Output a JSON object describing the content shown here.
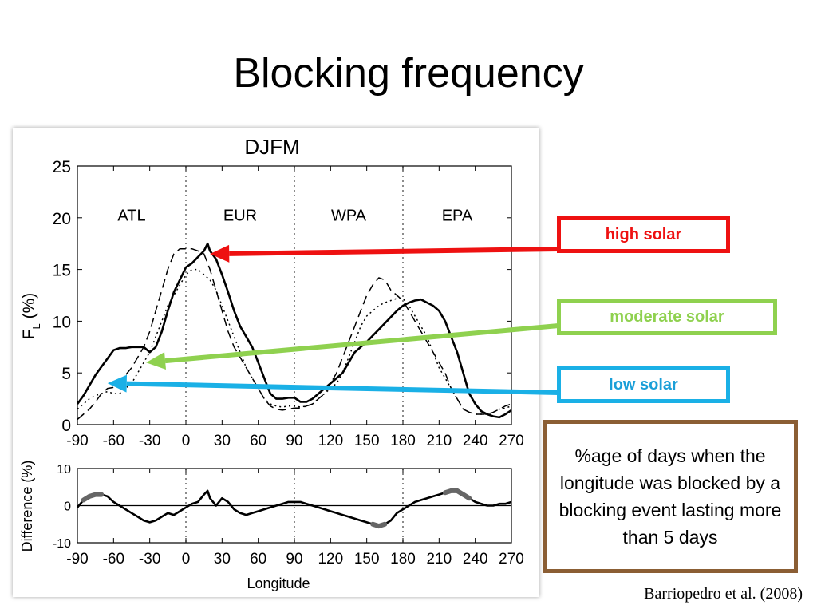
{
  "slide": {
    "title": "Blocking frequency",
    "citation": "Barriopedro et al. (2008)",
    "note": "%age of days when the longitude was blocked by a blocking event lasting more than 5 days"
  },
  "labels": [
    {
      "key": "high",
      "text": "high solar",
      "color": "#ee1111",
      "target": {
        "x": 20,
        "y": 16.5
      }
    },
    {
      "key": "moderate",
      "text": "moderate solar",
      "color": "#8fd14f",
      "target": {
        "x": -33,
        "y": 6.0
      }
    },
    {
      "key": "low",
      "text": "low solar",
      "color": "#1ab0e6",
      "target": {
        "x": -65,
        "y": 4.0
      }
    }
  ],
  "chart_data": [
    {
      "type": "line",
      "title": "DJFM",
      "xlabel": "",
      "ylabel": "F_L (%)",
      "ylabel_main": "F",
      "ylabel_sub": "L",
      "ylabel_unit": "(%)",
      "xlim": [
        -90,
        270
      ],
      "ylim": [
        0,
        25
      ],
      "xticks": [
        -90,
        -60,
        -30,
        0,
        30,
        60,
        90,
        120,
        150,
        180,
        210,
        240,
        270
      ],
      "yticks": [
        0,
        5,
        10,
        15,
        20,
        25
      ],
      "sector_dividers": [
        0,
        90,
        180
      ],
      "regions": [
        {
          "label": "ATL",
          "x": -45
        },
        {
          "label": "EUR",
          "x": 45
        },
        {
          "label": "WPA",
          "x": 135
        },
        {
          "label": "EPA",
          "x": 225
        }
      ],
      "series": [
        {
          "style": "solid",
          "x": [
            -90,
            -85,
            -80,
            -75,
            -70,
            -65,
            -60,
            -55,
            -50,
            -45,
            -40,
            -35,
            -30,
            -25,
            -20,
            -15,
            -10,
            -5,
            0,
            5,
            10,
            15,
            18,
            20,
            25,
            30,
            35,
            40,
            45,
            50,
            55,
            60,
            65,
            70,
            75,
            80,
            85,
            90,
            95,
            100,
            105,
            110,
            115,
            120,
            125,
            130,
            135,
            140,
            145,
            150,
            155,
            160,
            165,
            170,
            175,
            180,
            185,
            190,
            195,
            200,
            205,
            210,
            215,
            220,
            225,
            230,
            235,
            240,
            245,
            250,
            255,
            260,
            265,
            270
          ],
          "y": [
            2.0,
            2.8,
            3.8,
            4.8,
            5.6,
            6.4,
            7.2,
            7.4,
            7.4,
            7.5,
            7.5,
            7.5,
            7.0,
            7.5,
            9.0,
            11.0,
            12.8,
            14.0,
            15.2,
            15.6,
            16.2,
            16.8,
            17.5,
            16.8,
            16.0,
            14.5,
            12.8,
            11.0,
            9.5,
            8.5,
            7.5,
            6.0,
            4.5,
            3.0,
            2.5,
            2.5,
            2.6,
            2.6,
            2.2,
            2.2,
            2.5,
            3.0,
            3.5,
            4.0,
            4.5,
            5.0,
            6.0,
            7.0,
            7.5,
            8.0,
            8.6,
            9.2,
            9.8,
            10.4,
            11.0,
            11.5,
            11.8,
            12.0,
            12.1,
            11.8,
            11.5,
            11.0,
            10.0,
            8.5,
            7.0,
            5.0,
            3.0,
            2.0,
            1.3,
            1.0,
            0.8,
            0.7,
            1.0,
            1.4
          ]
        },
        {
          "style": "dashed",
          "x": [
            -90,
            -85,
            -80,
            -75,
            -70,
            -65,
            -60,
            -55,
            -50,
            -45,
            -40,
            -35,
            -30,
            -25,
            -20,
            -15,
            -10,
            -5,
            0,
            5,
            10,
            15,
            20,
            25,
            30,
            35,
            40,
            45,
            50,
            55,
            60,
            65,
            70,
            75,
            80,
            85,
            90,
            95,
            100,
            105,
            110,
            115,
            120,
            125,
            130,
            135,
            140,
            145,
            150,
            155,
            160,
            165,
            170,
            175,
            180,
            185,
            190,
            195,
            200,
            205,
            210,
            215,
            220,
            225,
            230,
            235,
            240,
            245,
            250,
            255,
            260,
            265,
            270
          ],
          "y": [
            0.5,
            1.0,
            1.5,
            2.2,
            3.0,
            3.5,
            3.6,
            4.0,
            4.8,
            5.5,
            6.5,
            7.5,
            9.0,
            11.0,
            13.0,
            15.0,
            16.5,
            17.0,
            17.0,
            17.0,
            16.8,
            16.5,
            15.0,
            13.0,
            11.0,
            9.0,
            7.5,
            6.5,
            5.5,
            4.5,
            3.5,
            2.5,
            1.8,
            1.5,
            1.4,
            1.5,
            1.6,
            1.6,
            1.8,
            2.0,
            2.5,
            3.0,
            4.0,
            5.0,
            6.5,
            8.0,
            9.5,
            11.0,
            12.5,
            13.5,
            14.2,
            14.0,
            13.0,
            12.5,
            12.0,
            11.0,
            10.0,
            9.0,
            8.0,
            7.0,
            6.0,
            5.0,
            3.5,
            2.5,
            1.5,
            1.2,
            1.0,
            1.0,
            1.0,
            1.2,
            1.5,
            1.8,
            2.0
          ]
        },
        {
          "style": "dotted",
          "x": [
            -90,
            -85,
            -80,
            -75,
            -70,
            -65,
            -60,
            -55,
            -50,
            -45,
            -40,
            -35,
            -30,
            -25,
            -20,
            -15,
            -10,
            -5,
            0,
            5,
            10,
            15,
            20,
            25,
            30,
            35,
            40,
            45,
            50,
            55,
            60,
            65,
            70,
            75,
            80,
            85,
            90,
            95,
            100,
            105,
            110,
            115,
            120,
            125,
            130,
            135,
            140,
            145,
            150,
            155,
            160,
            165,
            170,
            175,
            180,
            185,
            190,
            195,
            200,
            205,
            210,
            215,
            220,
            225,
            230,
            235,
            240,
            245,
            250,
            255,
            260,
            265,
            270
          ],
          "y": [
            1.5,
            2.0,
            2.5,
            2.8,
            3.0,
            3.2,
            3.0,
            3.0,
            3.5,
            4.0,
            5.0,
            6.0,
            7.0,
            8.5,
            10.0,
            11.5,
            12.5,
            13.5,
            14.5,
            15.0,
            15.0,
            14.5,
            14.0,
            13.0,
            11.5,
            10.0,
            8.5,
            7.0,
            5.5,
            4.5,
            3.5,
            2.5,
            2.0,
            1.8,
            1.7,
            1.8,
            1.8,
            1.7,
            1.8,
            2.0,
            2.5,
            3.0,
            3.5,
            4.0,
            5.0,
            6.5,
            8.0,
            9.5,
            10.5,
            11.0,
            11.5,
            11.8,
            12.0,
            12.2,
            12.2,
            11.5,
            10.5,
            9.5,
            8.5,
            7.0,
            5.5,
            4.5,
            3.5,
            2.5,
            1.5,
            1.2,
            1.0,
            1.0,
            1.0,
            1.2,
            1.5,
            1.6,
            1.8
          ]
        }
      ]
    },
    {
      "type": "line",
      "title": "",
      "xlabel": "Longitude",
      "ylabel": "Difference (%)",
      "xlim": [
        -90,
        270
      ],
      "ylim": [
        -10,
        10
      ],
      "xticks": [
        -90,
        -60,
        -30,
        0,
        30,
        60,
        90,
        120,
        150,
        180,
        210,
        240,
        270
      ],
      "yticks": [
        -10,
        0,
        10
      ],
      "sector_dividers": [
        0,
        90,
        180
      ],
      "series": [
        {
          "style": "solid",
          "x": [
            -90,
            -85,
            -80,
            -75,
            -70,
            -65,
            -60,
            -55,
            -50,
            -45,
            -40,
            -35,
            -30,
            -25,
            -20,
            -15,
            -10,
            -5,
            0,
            5,
            10,
            15,
            18,
            20,
            25,
            30,
            35,
            40,
            45,
            50,
            55,
            60,
            65,
            70,
            75,
            80,
            85,
            90,
            95,
            100,
            105,
            110,
            115,
            120,
            125,
            130,
            135,
            140,
            145,
            150,
            155,
            160,
            165,
            170,
            175,
            180,
            185,
            190,
            195,
            200,
            205,
            210,
            215,
            220,
            225,
            230,
            235,
            240,
            245,
            250,
            255,
            260,
            265,
            270
          ],
          "y": [
            -0.5,
            1.5,
            2.5,
            3.0,
            3.0,
            2.5,
            1.0,
            0.0,
            -1.0,
            -2.0,
            -3.0,
            -4.0,
            -4.5,
            -4.0,
            -3.0,
            -2.0,
            -2.5,
            -1.5,
            -0.5,
            0.5,
            1.0,
            3.0,
            4.0,
            2.0,
            0.0,
            2.0,
            1.0,
            -1.0,
            -2.0,
            -2.5,
            -2.0,
            -1.5,
            -1.0,
            -0.5,
            0.0,
            0.5,
            1.0,
            1.0,
            1.0,
            0.5,
            0.0,
            -0.5,
            -1.0,
            -1.5,
            -2.0,
            -2.5,
            -3.0,
            -3.5,
            -4.0,
            -4.5,
            -5.0,
            -5.5,
            -5.0,
            -4.0,
            -2.0,
            -1.0,
            0.0,
            1.0,
            1.5,
            2.0,
            2.5,
            3.0,
            3.5,
            4.0,
            4.0,
            3.0,
            2.0,
            1.0,
            0.5,
            0.0,
            0.0,
            0.5,
            0.5,
            1.0
          ]
        }
      ],
      "highlighted_ranges": [
        [
          -85,
          -70
        ],
        [
          155,
          165
        ],
        [
          215,
          235
        ]
      ]
    }
  ]
}
